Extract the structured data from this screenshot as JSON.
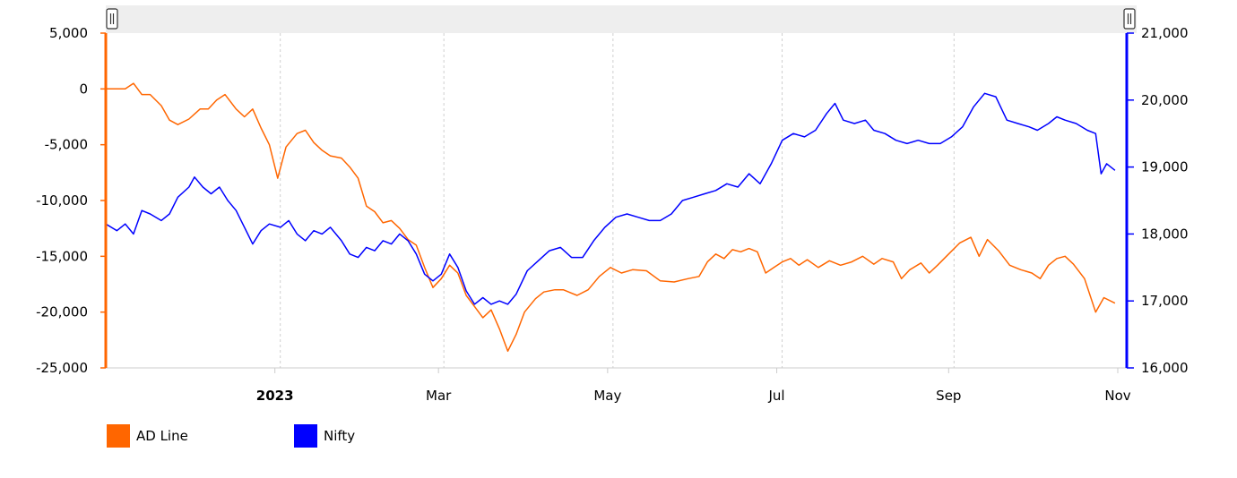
{
  "chart_data": {
    "type": "line",
    "x_range": [
      "2022-11-01",
      "2023-11-01"
    ],
    "x_ticks": [
      {
        "date": "2023-01-01",
        "label": "2023",
        "bold": true
      },
      {
        "date": "2023-03-01",
        "label": "Mar",
        "bold": false
      },
      {
        "date": "2023-05-01",
        "label": "May",
        "bold": false
      },
      {
        "date": "2023-07-01",
        "label": "Jul",
        "bold": false
      },
      {
        "date": "2023-09-01",
        "label": "Sep",
        "bold": false
      },
      {
        "date": "2023-11-01",
        "label": "Nov",
        "bold": false
      }
    ],
    "y_left": {
      "ylim": [
        -25000,
        5000
      ],
      "ticks": [
        5000,
        0,
        -5000,
        -10000,
        -15000,
        -20000,
        -25000
      ],
      "tick_labels": [
        "5,000",
        "0",
        "-5,000",
        "-10,000",
        "-15,000",
        "-20,000",
        "-25,000"
      ],
      "color": "#ff6600"
    },
    "y_right": {
      "ylim": [
        16000,
        21000
      ],
      "ticks": [
        21000,
        20000,
        19000,
        18000,
        17000,
        16000
      ],
      "tick_labels": [
        "21,000",
        "20,000",
        "19,000",
        "18,000",
        "17,000",
        "16,000"
      ],
      "color": "#0000ff"
    },
    "series": [
      {
        "name": "AD Line",
        "axis": "left",
        "color": "#ff6600",
        "points": [
          [
            "2022-11-01",
            0
          ],
          [
            "2022-11-05",
            0
          ],
          [
            "2022-11-08",
            0
          ],
          [
            "2022-11-11",
            500
          ],
          [
            "2022-11-14",
            -500
          ],
          [
            "2022-11-17",
            -500
          ],
          [
            "2022-11-21",
            -1500
          ],
          [
            "2022-11-24",
            -2800
          ],
          [
            "2022-11-27",
            -3200
          ],
          [
            "2022-12-01",
            -2700
          ],
          [
            "2022-12-05",
            -1800
          ],
          [
            "2022-12-08",
            -1800
          ],
          [
            "2022-12-11",
            -1000
          ],
          [
            "2022-12-14",
            -500
          ],
          [
            "2022-12-18",
            -1800
          ],
          [
            "2022-12-21",
            -2500
          ],
          [
            "2022-12-24",
            -1800
          ],
          [
            "2022-12-27",
            -3500
          ],
          [
            "2022-12-30",
            -5000
          ],
          [
            "2023-01-02",
            -8000
          ],
          [
            "2023-01-05",
            -5200
          ],
          [
            "2023-01-09",
            -4000
          ],
          [
            "2023-01-12",
            -3700
          ],
          [
            "2023-01-15",
            -4800
          ],
          [
            "2023-01-18",
            -5500
          ],
          [
            "2023-01-21",
            -6000
          ],
          [
            "2023-01-25",
            -6200
          ],
          [
            "2023-01-28",
            -7000
          ],
          [
            "2023-01-31",
            -8000
          ],
          [
            "2023-02-03",
            -10500
          ],
          [
            "2023-02-06",
            -11000
          ],
          [
            "2023-02-09",
            -12000
          ],
          [
            "2023-02-12",
            -11800
          ],
          [
            "2023-02-15",
            -12500
          ],
          [
            "2023-02-18",
            -13500
          ],
          [
            "2023-02-21",
            -14000
          ],
          [
            "2023-02-24",
            -16000
          ],
          [
            "2023-02-27",
            -17800
          ],
          [
            "2023-03-02",
            -17000
          ],
          [
            "2023-03-05",
            -15800
          ],
          [
            "2023-03-08",
            -16500
          ],
          [
            "2023-03-11",
            -18500
          ],
          [
            "2023-03-14",
            -19500
          ],
          [
            "2023-03-17",
            -20500
          ],
          [
            "2023-03-20",
            -19800
          ],
          [
            "2023-03-23",
            -21500
          ],
          [
            "2023-03-26",
            -23500
          ],
          [
            "2023-03-29",
            -22000
          ],
          [
            "2023-04-01",
            -20000
          ],
          [
            "2023-04-05",
            -18800
          ],
          [
            "2023-04-08",
            -18200
          ],
          [
            "2023-04-12",
            -18000
          ],
          [
            "2023-04-15",
            -18000
          ],
          [
            "2023-04-20",
            -18500
          ],
          [
            "2023-04-24",
            -18000
          ],
          [
            "2023-04-28",
            -16800
          ],
          [
            "2023-05-02",
            -16000
          ],
          [
            "2023-05-06",
            -16500
          ],
          [
            "2023-05-10",
            -16200
          ],
          [
            "2023-05-15",
            -16300
          ],
          [
            "2023-05-20",
            -17200
          ],
          [
            "2023-05-25",
            -17300
          ],
          [
            "2023-05-30",
            -17000
          ],
          [
            "2023-06-03",
            -16800
          ],
          [
            "2023-06-06",
            -15500
          ],
          [
            "2023-06-09",
            -14800
          ],
          [
            "2023-06-12",
            -15200
          ],
          [
            "2023-06-15",
            -14400
          ],
          [
            "2023-06-18",
            -14600
          ],
          [
            "2023-06-21",
            -14300
          ],
          [
            "2023-06-24",
            -14600
          ],
          [
            "2023-06-27",
            -16500
          ],
          [
            "2023-06-30",
            -16000
          ],
          [
            "2023-07-03",
            -15500
          ],
          [
            "2023-07-06",
            -15200
          ],
          [
            "2023-07-09",
            -15800
          ],
          [
            "2023-07-12",
            -15300
          ],
          [
            "2023-07-16",
            -16000
          ],
          [
            "2023-07-20",
            -15400
          ],
          [
            "2023-07-24",
            -15800
          ],
          [
            "2023-07-28",
            -15500
          ],
          [
            "2023-08-01",
            -15000
          ],
          [
            "2023-08-05",
            -15700
          ],
          [
            "2023-08-08",
            -15200
          ],
          [
            "2023-08-12",
            -15500
          ],
          [
            "2023-08-15",
            -17000
          ],
          [
            "2023-08-18",
            -16200
          ],
          [
            "2023-08-22",
            -15600
          ],
          [
            "2023-08-25",
            -16500
          ],
          [
            "2023-08-28",
            -15800
          ],
          [
            "2023-09-01",
            -14800
          ],
          [
            "2023-09-05",
            -13800
          ],
          [
            "2023-09-09",
            -13300
          ],
          [
            "2023-09-12",
            -15000
          ],
          [
            "2023-09-15",
            -13500
          ],
          [
            "2023-09-19",
            -14500
          ],
          [
            "2023-09-23",
            -15800
          ],
          [
            "2023-09-27",
            -16200
          ],
          [
            "2023-10-01",
            -16500
          ],
          [
            "2023-10-04",
            -17000
          ],
          [
            "2023-10-07",
            -15800
          ],
          [
            "2023-10-10",
            -15200
          ],
          [
            "2023-10-13",
            -15000
          ],
          [
            "2023-10-16",
            -15700
          ],
          [
            "2023-10-20",
            -17000
          ],
          [
            "2023-10-24",
            -20000
          ],
          [
            "2023-10-27",
            -18700
          ],
          [
            "2023-10-31",
            -19200
          ]
        ]
      },
      {
        "name": "Nifty",
        "axis": "right",
        "color": "#0000ff",
        "points": [
          [
            "2022-11-01",
            18150
          ],
          [
            "2022-11-05",
            18050
          ],
          [
            "2022-11-08",
            18150
          ],
          [
            "2022-11-11",
            18000
          ],
          [
            "2022-11-14",
            18350
          ],
          [
            "2022-11-17",
            18300
          ],
          [
            "2022-11-21",
            18200
          ],
          [
            "2022-11-24",
            18300
          ],
          [
            "2022-11-27",
            18550
          ],
          [
            "2022-12-01",
            18700
          ],
          [
            "2022-12-03",
            18850
          ],
          [
            "2022-12-06",
            18700
          ],
          [
            "2022-12-09",
            18600
          ],
          [
            "2022-12-12",
            18700
          ],
          [
            "2022-12-15",
            18500
          ],
          [
            "2022-12-18",
            18350
          ],
          [
            "2022-12-21",
            18100
          ],
          [
            "2022-12-24",
            17850
          ],
          [
            "2022-12-27",
            18050
          ],
          [
            "2022-12-30",
            18150
          ],
          [
            "2023-01-03",
            18100
          ],
          [
            "2023-01-06",
            18200
          ],
          [
            "2023-01-09",
            18000
          ],
          [
            "2023-01-12",
            17900
          ],
          [
            "2023-01-15",
            18050
          ],
          [
            "2023-01-18",
            18000
          ],
          [
            "2023-01-21",
            18100
          ],
          [
            "2023-01-25",
            17900
          ],
          [
            "2023-01-28",
            17700
          ],
          [
            "2023-01-31",
            17650
          ],
          [
            "2023-02-03",
            17800
          ],
          [
            "2023-02-06",
            17750
          ],
          [
            "2023-02-09",
            17900
          ],
          [
            "2023-02-12",
            17850
          ],
          [
            "2023-02-15",
            18000
          ],
          [
            "2023-02-18",
            17900
          ],
          [
            "2023-02-21",
            17700
          ],
          [
            "2023-02-24",
            17400
          ],
          [
            "2023-02-27",
            17300
          ],
          [
            "2023-03-02",
            17400
          ],
          [
            "2023-03-05",
            17700
          ],
          [
            "2023-03-08",
            17500
          ],
          [
            "2023-03-11",
            17150
          ],
          [
            "2023-03-14",
            16950
          ],
          [
            "2023-03-17",
            17050
          ],
          [
            "2023-03-20",
            16950
          ],
          [
            "2023-03-23",
            17000
          ],
          [
            "2023-03-26",
            16950
          ],
          [
            "2023-03-29",
            17100
          ],
          [
            "2023-04-02",
            17450
          ],
          [
            "2023-04-06",
            17600
          ],
          [
            "2023-04-10",
            17750
          ],
          [
            "2023-04-14",
            17800
          ],
          [
            "2023-04-18",
            17650
          ],
          [
            "2023-04-22",
            17650
          ],
          [
            "2023-04-26",
            17900
          ],
          [
            "2023-04-30",
            18100
          ],
          [
            "2023-05-04",
            18250
          ],
          [
            "2023-05-08",
            18300
          ],
          [
            "2023-05-12",
            18250
          ],
          [
            "2023-05-16",
            18200
          ],
          [
            "2023-05-20",
            18200
          ],
          [
            "2023-05-24",
            18300
          ],
          [
            "2023-05-28",
            18500
          ],
          [
            "2023-06-01",
            18550
          ],
          [
            "2023-06-05",
            18600
          ],
          [
            "2023-06-09",
            18650
          ],
          [
            "2023-06-13",
            18750
          ],
          [
            "2023-06-17",
            18700
          ],
          [
            "2023-06-21",
            18900
          ],
          [
            "2023-06-25",
            18750
          ],
          [
            "2023-06-29",
            19050
          ],
          [
            "2023-07-03",
            19400
          ],
          [
            "2023-07-07",
            19500
          ],
          [
            "2023-07-11",
            19450
          ],
          [
            "2023-07-15",
            19550
          ],
          [
            "2023-07-19",
            19800
          ],
          [
            "2023-07-22",
            19950
          ],
          [
            "2023-07-25",
            19700
          ],
          [
            "2023-07-29",
            19650
          ],
          [
            "2023-08-02",
            19700
          ],
          [
            "2023-08-05",
            19550
          ],
          [
            "2023-08-09",
            19500
          ],
          [
            "2023-08-13",
            19400
          ],
          [
            "2023-08-17",
            19350
          ],
          [
            "2023-08-21",
            19400
          ],
          [
            "2023-08-25",
            19350
          ],
          [
            "2023-08-29",
            19350
          ],
          [
            "2023-09-02",
            19450
          ],
          [
            "2023-09-06",
            19600
          ],
          [
            "2023-09-10",
            19900
          ],
          [
            "2023-09-14",
            20100
          ],
          [
            "2023-09-18",
            20050
          ],
          [
            "2023-09-22",
            19700
          ],
          [
            "2023-09-26",
            19650
          ],
          [
            "2023-09-30",
            19600
          ],
          [
            "2023-10-03",
            19550
          ],
          [
            "2023-10-07",
            19650
          ],
          [
            "2023-10-10",
            19750
          ],
          [
            "2023-10-13",
            19700
          ],
          [
            "2023-10-17",
            19650
          ],
          [
            "2023-10-21",
            19550
          ],
          [
            "2023-10-24",
            19500
          ],
          [
            "2023-10-26",
            18900
          ],
          [
            "2023-10-28",
            19050
          ],
          [
            "2023-10-31",
            18950
          ]
        ]
      }
    ],
    "legend": [
      {
        "name": "AD Line",
        "color": "#ff6600"
      },
      {
        "name": "Nifty",
        "color": "#0000ff"
      }
    ],
    "legend_position": "bottom-left",
    "grid": "vertical-dashed"
  }
}
